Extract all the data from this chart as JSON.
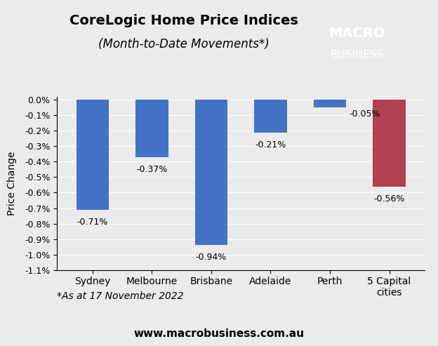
{
  "title_line1": "CoreLogic Home Price Indices",
  "title_line2": "(Month-to-Date Movements*)",
  "categories": [
    "Sydney",
    "Melbourne",
    "Brisbane",
    "Adelaide",
    "Perth",
    "5 Capital\ncities"
  ],
  "values": [
    -0.71,
    -0.37,
    -0.94,
    -0.21,
    -0.05,
    -0.56
  ],
  "bar_colors": [
    "#4472C4",
    "#4472C4",
    "#4472C4",
    "#4472C4",
    "#4472C4",
    "#B04050"
  ],
  "ylabel": "Price Change",
  "ylim": [
    -1.1,
    0.02
  ],
  "yticks": [
    0.0,
    -0.1,
    -0.2,
    -0.3,
    -0.4,
    -0.5,
    -0.6,
    -0.7,
    -0.8,
    -0.9,
    -1.0,
    -1.1
  ],
  "ytick_labels": [
    "0.0%",
    "-0.1%",
    "-0.2%",
    "-0.3%",
    "-0.4%",
    "-0.5%",
    "-0.6%",
    "-0.7%",
    "-0.8%",
    "-0.9%",
    "-1.0%",
    "-1.1%"
  ],
  "footnote": "*As at 17 November 2022",
  "website": "www.macrobusiness.com.au",
  "background_color": "#EBEBEB",
  "logo_bg_color": "#CC2222",
  "logo_text_line1": "MACRO",
  "logo_text_line2": "BUSINESS"
}
